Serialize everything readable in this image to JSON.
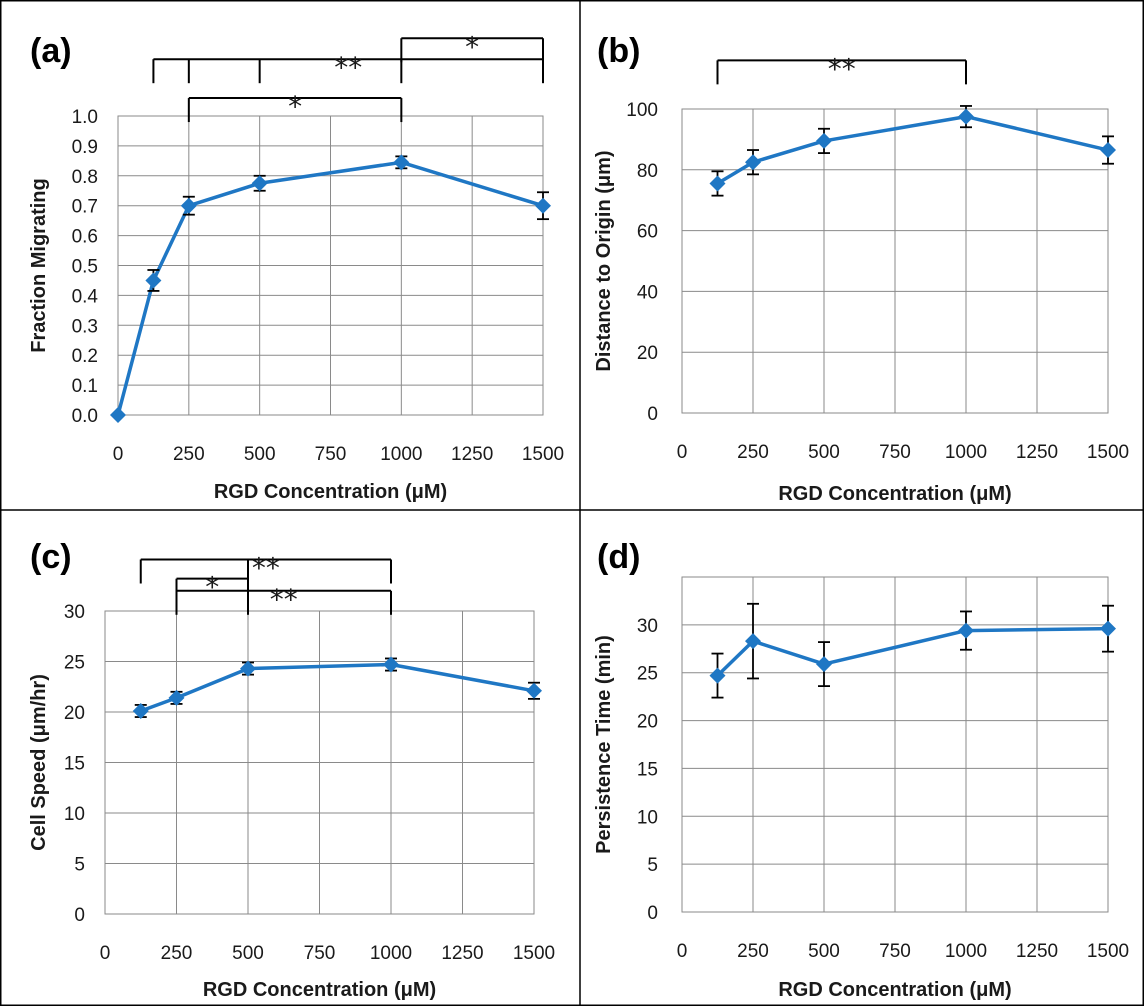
{
  "colors": {
    "series": "#1f77c4",
    "panel_border": "#000000"
  },
  "chart_data": [
    {
      "panel": "(a)",
      "type": "line",
      "xlabel": "RGD Concentration (μM)",
      "ylabel": "Fraction Migrating",
      "xlim": [
        0,
        1500
      ],
      "ylim": [
        0,
        1.0
      ],
      "x_ticks": [
        0,
        250,
        500,
        750,
        1000,
        1250,
        1500
      ],
      "y_ticks": [
        0.0,
        0.1,
        0.2,
        0.3,
        0.4,
        0.5,
        0.6,
        0.7,
        0.8,
        0.9,
        1.0
      ],
      "tick_decimals": 1,
      "grid": true,
      "x": [
        0,
        125,
        250,
        500,
        1000,
        1500
      ],
      "y": [
        0.0,
        0.45,
        0.7,
        0.775,
        0.845,
        0.7
      ],
      "error": [
        0,
        0.035,
        0.03,
        0.025,
        0.02,
        0.045
      ],
      "brackets": [
        {
          "from": 125,
          "to": 1500,
          "via": [
            250,
            500,
            1000
          ],
          "level": 1.19,
          "label": "**"
        },
        {
          "from": 1000,
          "to": 1500,
          "level": 1.26,
          "label": "*"
        },
        {
          "from": 250,
          "to": 1000,
          "level": 1.06,
          "label": "*"
        }
      ]
    },
    {
      "panel": "(b)",
      "type": "line",
      "xlabel": "RGD Concentration (μM)",
      "ylabel": "Distance to Origin (μm)",
      "xlim": [
        0,
        1500
      ],
      "ylim": [
        0,
        100
      ],
      "x_ticks": [
        0,
        250,
        500,
        750,
        1000,
        1250,
        1500
      ],
      "y_ticks": [
        0,
        20,
        40,
        60,
        80,
        100
      ],
      "tick_decimals": 0,
      "grid": true,
      "x": [
        125,
        250,
        500,
        1000,
        1500
      ],
      "y": [
        75.5,
        82.5,
        89.5,
        97.5,
        86.5
      ],
      "error": [
        4,
        4,
        4,
        3.5,
        4.5
      ],
      "brackets": [
        {
          "from": 125,
          "to": 1000,
          "level": 116,
          "label": "**"
        }
      ]
    },
    {
      "panel": "(c)",
      "type": "line",
      "xlabel": "RGD Concentration (μM)",
      "ylabel": "Cell Speed (μm/hr)",
      "xlim": [
        0,
        1500
      ],
      "ylim": [
        0,
        30
      ],
      "x_ticks": [
        0,
        250,
        500,
        750,
        1000,
        1250,
        1500
      ],
      "y_ticks": [
        0,
        5,
        10,
        15,
        20,
        25,
        30
      ],
      "tick_decimals": 0,
      "grid": true,
      "x": [
        125,
        250,
        500,
        1000,
        1500
      ],
      "y": [
        20.1,
        21.4,
        24.3,
        24.7,
        22.1
      ],
      "error": [
        0.6,
        0.6,
        0.6,
        0.6,
        0.8
      ],
      "brackets": [
        {
          "from": 125,
          "to": 1000,
          "via": [
            500
          ],
          "level": 35.1,
          "label": "**"
        },
        {
          "from": 250,
          "to": 500,
          "level": 33.2,
          "label": "*"
        },
        {
          "from": 250,
          "to": 1000,
          "via": [
            500
          ],
          "level": 32.0,
          "label": "**"
        }
      ]
    },
    {
      "panel": "(d)",
      "type": "line",
      "xlabel": "RGD Concentration (μM)",
      "ylabel": "Persistence Time (min)",
      "xlim": [
        0,
        1500
      ],
      "ylim": [
        0,
        35
      ],
      "x_ticks": [
        0,
        250,
        500,
        750,
        1000,
        1250,
        1500
      ],
      "y_ticks": [
        0,
        5,
        10,
        15,
        20,
        25,
        30
      ],
      "tick_decimals": 0,
      "grid": true,
      "x": [
        125,
        250,
        500,
        1000,
        1500
      ],
      "y": [
        24.7,
        28.3,
        25.9,
        29.4,
        29.6
      ],
      "error": [
        2.3,
        3.9,
        2.3,
        2.0,
        2.4
      ],
      "brackets": []
    }
  ]
}
